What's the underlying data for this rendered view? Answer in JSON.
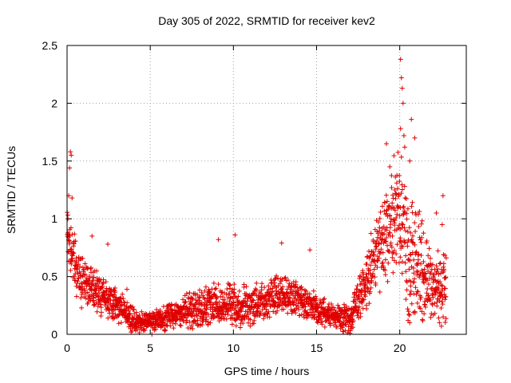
{
  "chart_data": {
    "type": "scatter",
    "title": "Day 305 of 2022, SRMTID for receiver kev2",
    "xlabel": "GPS time / hours",
    "ylabel": "SRMTID / TECUs",
    "xlim": [
      0,
      24
    ],
    "ylim": [
      0,
      2.5
    ],
    "x_ticks": [
      0,
      5,
      10,
      15,
      20
    ],
    "y_ticks": [
      0,
      0.5,
      1,
      1.5,
      2,
      2.5
    ],
    "x_tick_labels": [
      "0",
      "5",
      "10",
      "15",
      "20"
    ],
    "y_tick_labels": [
      "0",
      "0.5",
      "1",
      "1.5",
      "2",
      "2.5"
    ],
    "grid": true,
    "marker": "+",
    "series_color": "#e00000",
    "trend": [
      {
        "x": 0.0,
        "y": 0.95
      },
      {
        "x": 0.3,
        "y": 0.7
      },
      {
        "x": 0.6,
        "y": 0.5
      },
      {
        "x": 1.0,
        "y": 0.45
      },
      {
        "x": 1.5,
        "y": 0.4
      },
      {
        "x": 2.0,
        "y": 0.33
      },
      {
        "x": 3.0,
        "y": 0.25
      },
      {
        "x": 4.0,
        "y": 0.12
      },
      {
        "x": 5.0,
        "y": 0.1
      },
      {
        "x": 6.0,
        "y": 0.15
      },
      {
        "x": 7.0,
        "y": 0.2
      },
      {
        "x": 8.0,
        "y": 0.22
      },
      {
        "x": 9.0,
        "y": 0.28
      },
      {
        "x": 10.0,
        "y": 0.25
      },
      {
        "x": 11.0,
        "y": 0.23
      },
      {
        "x": 12.0,
        "y": 0.3
      },
      {
        "x": 13.0,
        "y": 0.35
      },
      {
        "x": 14.0,
        "y": 0.3
      },
      {
        "x": 15.0,
        "y": 0.22
      },
      {
        "x": 16.0,
        "y": 0.15
      },
      {
        "x": 17.0,
        "y": 0.12
      },
      {
        "x": 17.5,
        "y": 0.3
      },
      {
        "x": 18.0,
        "y": 0.45
      },
      {
        "x": 18.5,
        "y": 0.65
      },
      {
        "x": 19.0,
        "y": 0.85
      },
      {
        "x": 19.5,
        "y": 0.95
      },
      {
        "x": 20.0,
        "y": 1.1
      },
      {
        "x": 20.5,
        "y": 0.7
      },
      {
        "x": 21.0,
        "y": 0.65
      },
      {
        "x": 21.5,
        "y": 0.5
      },
      {
        "x": 22.0,
        "y": 0.4
      },
      {
        "x": 22.5,
        "y": 0.4
      },
      {
        "x": 22.8,
        "y": 0.45
      }
    ],
    "spread": [
      {
        "x": 0.0,
        "s": 0.2
      },
      {
        "x": 1.0,
        "s": 0.15
      },
      {
        "x": 3.0,
        "s": 0.1
      },
      {
        "x": 5.0,
        "s": 0.06
      },
      {
        "x": 8.0,
        "s": 0.12
      },
      {
        "x": 12.0,
        "s": 0.13
      },
      {
        "x": 16.0,
        "s": 0.08
      },
      {
        "x": 17.5,
        "s": 0.12
      },
      {
        "x": 19.0,
        "s": 0.3
      },
      {
        "x": 20.0,
        "s": 0.4
      },
      {
        "x": 21.0,
        "s": 0.35
      },
      {
        "x": 22.0,
        "s": 0.22
      },
      {
        "x": 22.8,
        "s": 0.25
      }
    ],
    "samples_per_hour": 48,
    "x_end": 22.8,
    "outliers": [
      {
        "x": 0.2,
        "y": 1.58
      },
      {
        "x": 0.25,
        "y": 1.55
      },
      {
        "x": 0.15,
        "y": 1.44
      },
      {
        "x": 0.1,
        "y": 1.2
      },
      {
        "x": 0.3,
        "y": 1.18
      },
      {
        "x": 0.05,
        "y": 1.0
      },
      {
        "x": 1.5,
        "y": 0.85
      },
      {
        "x": 2.45,
        "y": 0.78
      },
      {
        "x": 3.6,
        "y": 0.39
      },
      {
        "x": 5.1,
        "y": 0.0
      },
      {
        "x": 9.1,
        "y": 0.82
      },
      {
        "x": 10.1,
        "y": 0.86
      },
      {
        "x": 12.9,
        "y": 0.79
      },
      {
        "x": 14.6,
        "y": 0.73
      },
      {
        "x": 19.2,
        "y": 1.65
      },
      {
        "x": 19.4,
        "y": 1.45
      },
      {
        "x": 19.7,
        "y": 1.25
      },
      {
        "x": 20.05,
        "y": 2.38
      },
      {
        "x": 20.1,
        "y": 2.22
      },
      {
        "x": 20.15,
        "y": 2.13
      },
      {
        "x": 20.2,
        "y": 2.0
      },
      {
        "x": 20.05,
        "y": 1.78
      },
      {
        "x": 20.25,
        "y": 1.72
      },
      {
        "x": 20.3,
        "y": 1.62
      },
      {
        "x": 20.7,
        "y": 1.86
      },
      {
        "x": 20.9,
        "y": 1.7
      },
      {
        "x": 20.6,
        "y": 1.5
      },
      {
        "x": 20.5,
        "y": 0.12
      },
      {
        "x": 20.6,
        "y": 0.1
      },
      {
        "x": 22.6,
        "y": 1.2
      },
      {
        "x": 22.2,
        "y": 1.05
      },
      {
        "x": 22.55,
        "y": 0.95
      }
    ]
  }
}
